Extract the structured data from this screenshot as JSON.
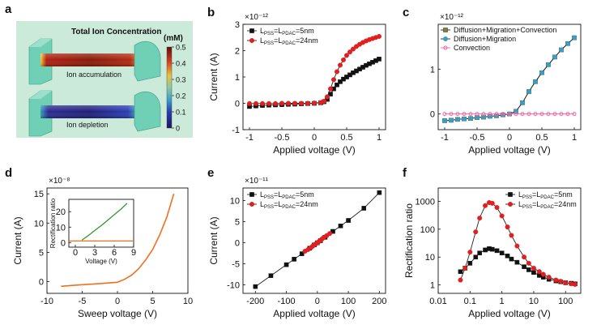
{
  "figure": {
    "panel_labels": [
      "a",
      "b",
      "c",
      "d",
      "e",
      "f"
    ]
  },
  "panel_a": {
    "title": "Total Ion Concentration",
    "unit": "(mM)",
    "colorbar_ticks": [
      "0.5",
      "0.4",
      "0.3",
      "0.2",
      "0.1",
      "0"
    ],
    "colorbar_range": [
      0,
      0.5
    ],
    "label_top": "Ion accumulation",
    "label_bottom": "Ion depletion",
    "colors": {
      "background": "#ccead9",
      "reservoir": "#6fd0b6",
      "channel_hot": "#8a1a08",
      "channel_cold": "#1f1f7a"
    }
  },
  "chart_data": [
    {
      "panel": "b",
      "type": "line",
      "multiplier": "×10⁻¹²",
      "xlabel": "Applied voltage (V)",
      "ylabel": "Current (A)",
      "xlim": [
        -1.1,
        1.1
      ],
      "ylim": [
        -1,
        3
      ],
      "xticks": [
        -1,
        -0.5,
        0,
        0.5,
        1
      ],
      "xtick_labels": [
        "-1",
        "-0.5",
        "0",
        "0.5",
        "1"
      ],
      "yticks": [
        -1,
        0,
        1,
        2,
        3
      ],
      "ytick_labels": [
        "-1",
        "0",
        "1",
        "2",
        "3"
      ],
      "legend_position": "top-left",
      "x": [
        -1,
        -0.9,
        -0.8,
        -0.7,
        -0.6,
        -0.5,
        -0.4,
        -0.3,
        -0.2,
        -0.1,
        0,
        0.1,
        0.15,
        0.2,
        0.25,
        0.3,
        0.35,
        0.4,
        0.45,
        0.5,
        0.55,
        0.6,
        0.65,
        0.7,
        0.75,
        0.8,
        0.85,
        0.9,
        0.95,
        1
      ],
      "series": [
        {
          "name": "L_PSS=L_PDAC=5nm",
          "name_parts": [
            "L",
            "PSS",
            "=L",
            "PDAC",
            "=5nm"
          ],
          "color": "#111111",
          "marker": "square",
          "values": [
            -0.12,
            -0.1,
            -0.08,
            -0.07,
            -0.06,
            -0.05,
            -0.04,
            -0.03,
            -0.02,
            -0.01,
            0,
            0.02,
            0.06,
            0.15,
            0.35,
            0.55,
            0.7,
            0.82,
            0.92,
            1.0,
            1.08,
            1.16,
            1.23,
            1.3,
            1.37,
            1.44,
            1.5,
            1.56,
            1.62,
            1.68
          ]
        },
        {
          "name": "L_PSS=L_PDAC=24nm",
          "name_parts": [
            "L",
            "PSS",
            "=L",
            "PDAC",
            "=24nm"
          ],
          "color": "#e02020",
          "marker": "circle",
          "values": [
            -0.01,
            -0.01,
            -0.01,
            -0.01,
            -0.01,
            0,
            0,
            0,
            0,
            0,
            0.01,
            0.03,
            0.08,
            0.25,
            0.55,
            0.9,
            1.2,
            1.45,
            1.65,
            1.82,
            1.95,
            2.06,
            2.16,
            2.24,
            2.31,
            2.37,
            2.42,
            2.46,
            2.5,
            2.54
          ]
        }
      ]
    },
    {
      "panel": "c",
      "type": "line",
      "multiplier": "×10⁻¹²",
      "xlabel": "Applied voltage (V)",
      "ylabel": "",
      "xlim": [
        -1.1,
        1.1
      ],
      "ylim": [
        -0.35,
        2.0
      ],
      "xticks": [
        -1,
        -0.5,
        0,
        0.5,
        1
      ],
      "xtick_labels": [
        "-1",
        "-0.5",
        "0",
        "0.5",
        "1"
      ],
      "yticks": [
        0,
        1
      ],
      "ytick_labels": [
        "0",
        "1"
      ],
      "legend_position": "top-left",
      "x": [
        -1,
        -0.9,
        -0.8,
        -0.7,
        -0.6,
        -0.5,
        -0.4,
        -0.3,
        -0.2,
        -0.1,
        0,
        0.1,
        0.2,
        0.3,
        0.4,
        0.5,
        0.6,
        0.7,
        0.8,
        0.9,
        1
      ],
      "series": [
        {
          "name": "Diffusion+Migration+Convection",
          "color": "#7a8040",
          "marker": "square",
          "values": [
            -0.15,
            -0.14,
            -0.12,
            -0.11,
            -0.1,
            -0.08,
            -0.07,
            -0.05,
            -0.04,
            -0.02,
            0,
            0.06,
            0.25,
            0.5,
            0.72,
            0.92,
            1.1,
            1.27,
            1.43,
            1.57,
            1.7
          ]
        },
        {
          "name": "Diffusion+Migration",
          "color": "#3a9ec0",
          "marker": "circle",
          "values": [
            -0.15,
            -0.14,
            -0.12,
            -0.11,
            -0.1,
            -0.08,
            -0.07,
            -0.05,
            -0.04,
            -0.02,
            0,
            0.06,
            0.25,
            0.5,
            0.72,
            0.92,
            1.1,
            1.27,
            1.43,
            1.57,
            1.7
          ]
        },
        {
          "name": "Convection",
          "color": "#ff60a0",
          "marker": "circle-open",
          "values": [
            0,
            0,
            0,
            0,
            0,
            0,
            0,
            0,
            0,
            0,
            0,
            0,
            0,
            0,
            0,
            0,
            0,
            0,
            0,
            0,
            0
          ]
        }
      ]
    },
    {
      "panel": "d",
      "type": "line",
      "multiplier": "×10⁻⁸",
      "xlabel": "Sweep voltage (V)",
      "ylabel": "Current (A)",
      "xlim": [
        -10,
        10
      ],
      "ylim": [
        -2,
        16
      ],
      "xticks": [
        -10,
        -5,
        0,
        5,
        10
      ],
      "xtick_labels": [
        "-10",
        "-5",
        "0",
        "5",
        "10"
      ],
      "yticks": [
        0,
        5,
        10,
        15
      ],
      "ytick_labels": [
        "0",
        "5",
        "10",
        "15"
      ],
      "series": [
        {
          "name": "",
          "color": "#f07020",
          "x": [
            -8,
            -6,
            -4,
            -2,
            0,
            1,
            2,
            3,
            4,
            5,
            6,
            7,
            8
          ],
          "values": [
            -0.8,
            -0.6,
            -0.45,
            -0.3,
            -0.1,
            0.4,
            1.1,
            2.2,
            3.7,
            5.5,
            8.0,
            11.0,
            15.0
          ]
        }
      ],
      "inset": {
        "type": "line",
        "xlabel": "Voltage (V)",
        "ylabel": "Rectification ratio",
        "xlim": [
          -1,
          9
        ],
        "ylim": [
          -3,
          28
        ],
        "xticks": [
          0,
          3,
          6,
          9
        ],
        "xtick_labels": [
          "0",
          "3",
          "6",
          "9"
        ],
        "yticks": [
          0,
          10,
          20
        ],
        "ytick_labels": [
          "0",
          "10",
          "20"
        ],
        "series": [
          {
            "name": "",
            "color": "#2e9a2e",
            "x": [
              1,
              2,
              3,
              4,
              5,
              6,
              7,
              8
            ],
            "values": [
              1.5,
              4.5,
              7.8,
              11,
              14.5,
              18,
              21.5,
              25.5
            ]
          },
          {
            "name": "",
            "color": "#f07020",
            "x": [
              -1,
              9
            ],
            "values": [
              1,
              1
            ]
          }
        ]
      }
    },
    {
      "panel": "e",
      "type": "line",
      "multiplier": "×10⁻¹¹",
      "xlabel": "Applied voltage (V)",
      "ylabel": "Current (A)",
      "xlim": [
        -240,
        220
      ],
      "ylim": [
        -12,
        13
      ],
      "xticks": [
        -200,
        -100,
        0,
        100,
        200
      ],
      "xtick_labels": [
        "-200",
        "-100",
        "0",
        "100",
        "200"
      ],
      "yticks": [
        -10,
        -5,
        0,
        5,
        10
      ],
      "ytick_labels": [
        "-10",
        "-5",
        "0",
        "5",
        "10"
      ],
      "legend_position": "top-left",
      "series": [
        {
          "name": "L_PSS=L_PDAC=5nm",
          "name_parts": [
            "L",
            "PSS",
            "=L",
            "PDAC",
            "=5nm"
          ],
          "color": "#111111",
          "marker": "square",
          "x": [
            -200,
            -150,
            -100,
            -75,
            -50,
            -25,
            -10,
            0,
            10,
            25,
            50,
            75,
            100,
            150,
            200
          ],
          "values": [
            -10.4,
            -7.8,
            -5.2,
            -3.9,
            -2.6,
            -1.3,
            -0.5,
            0,
            0.5,
            1.3,
            2.7,
            4.0,
            5.3,
            8.2,
            11.9
          ]
        },
        {
          "name": "L_PSS=L_PDAC=24nm",
          "name_parts": [
            "L",
            "PSS",
            "=L",
            "PDAC",
            "=24nm"
          ],
          "color": "#e02020",
          "marker": "circle",
          "x": [
            -40,
            -30,
            -20,
            -15,
            -10,
            -5,
            0,
            5,
            10,
            15,
            20,
            30,
            40
          ],
          "values": [
            -2.0,
            -1.6,
            -1.1,
            -0.8,
            -0.5,
            -0.25,
            0,
            0.3,
            0.6,
            0.9,
            1.2,
            1.7,
            2.2
          ]
        }
      ]
    },
    {
      "panel": "f",
      "type": "line",
      "xlabel": "Applied voltage (V)",
      "ylabel": "Rectification ratio",
      "xscale": "log",
      "yscale": "log",
      "xlim": [
        0.01,
        300
      ],
      "ylim": [
        0.5,
        3000
      ],
      "xticks": [
        0.01,
        0.1,
        1,
        10,
        100
      ],
      "xtick_labels": [
        "0.01",
        "0.1",
        "1",
        "10",
        "100"
      ],
      "yticks": [
        1,
        10,
        100,
        1000
      ],
      "ytick_labels": [
        "1",
        "10",
        "100",
        "1000"
      ],
      "legend_position": "top-right",
      "series": [
        {
          "name": "L_PSS=L_PDAC=5nm",
          "name_parts": [
            "L",
            "PSS",
            "=L",
            "PDAC",
            "=5nm"
          ],
          "color": "#111111",
          "marker": "square",
          "x": [
            0.05,
            0.07,
            0.1,
            0.15,
            0.2,
            0.3,
            0.4,
            0.5,
            0.7,
            1,
            1.5,
            2,
            3,
            5,
            7,
            10,
            15,
            20,
            30,
            50,
            70,
            100,
            150,
            200
          ],
          "values": [
            3,
            4,
            6,
            10,
            14,
            18,
            20,
            19,
            17,
            14,
            11,
            8.5,
            6.5,
            4.5,
            3.5,
            2.8,
            2.2,
            1.9,
            1.6,
            1.4,
            1.3,
            1.2,
            1.15,
            1.1
          ]
        },
        {
          "name": "L_PSS=L_PDAC=24nm",
          "name_parts": [
            "L",
            "PSS",
            "=L",
            "PDAC",
            "=24nm"
          ],
          "color": "#e02020",
          "marker": "circle",
          "x": [
            0.05,
            0.07,
            0.1,
            0.15,
            0.2,
            0.3,
            0.4,
            0.5,
            0.7,
            1,
            1.5,
            2,
            3,
            5,
            7,
            10,
            15,
            20,
            30,
            50,
            70,
            100,
            150,
            200
          ],
          "values": [
            1.5,
            4,
            15,
            80,
            250,
            700,
            900,
            850,
            600,
            300,
            120,
            60,
            25,
            10,
            6,
            4,
            3,
            2.4,
            1.9,
            1.5,
            1.35,
            1.2,
            1.1,
            1.05
          ]
        }
      ]
    }
  ]
}
